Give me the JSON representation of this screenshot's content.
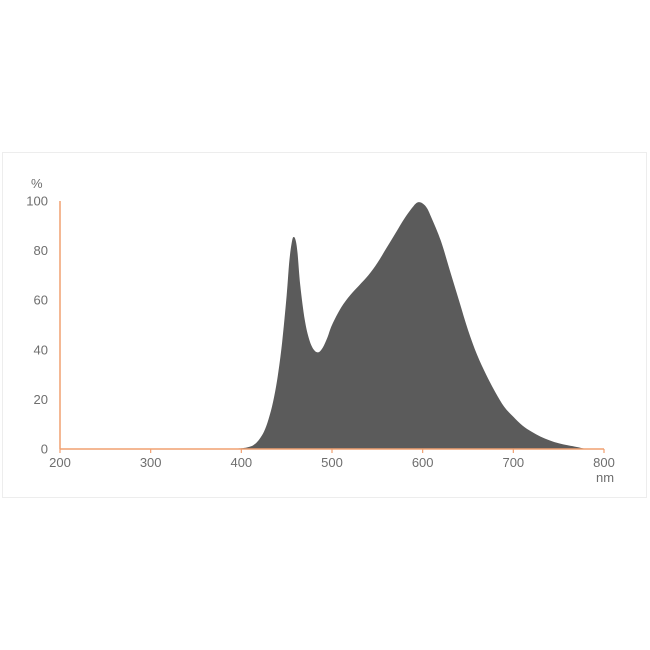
{
  "chart_data": {
    "type": "area",
    "title": "",
    "xlabel": "nm",
    "ylabel": "%",
    "xlim": [
      200,
      800
    ],
    "ylim": [
      0,
      100
    ],
    "x_ticks": [
      200,
      300,
      400,
      500,
      600,
      700,
      800
    ],
    "y_ticks": [
      0,
      20,
      40,
      60,
      80,
      100
    ],
    "grid": false,
    "legend": "none",
    "colors": {
      "fill": "#5b5b5b",
      "axis": "#f0a070",
      "text": "#6e6e6e"
    },
    "series": [
      {
        "x": [
          380,
          400,
          410,
          415,
          420,
          425,
          430,
          435,
          440,
          445,
          450,
          453,
          456,
          458,
          460,
          462,
          465,
          470,
          475,
          480,
          485,
          490,
          495,
          500,
          510,
          520,
          530,
          540,
          550,
          560,
          570,
          580,
          590,
          595,
          600,
          605,
          610,
          620,
          630,
          640,
          650,
          660,
          670,
          680,
          690,
          700,
          710,
          720,
          730,
          740,
          750,
          760,
          770,
          775,
          780
        ],
        "y": [
          0,
          0.3,
          1,
          2,
          4,
          7,
          12,
          19,
          29,
          43,
          62,
          76,
          84,
          85.5,
          84,
          79,
          66,
          52,
          44,
          40,
          39,
          41,
          45,
          50,
          57,
          62,
          66,
          70,
          75,
          81,
          87,
          93,
          98,
          99.5,
          99,
          97,
          93,
          84,
          72,
          60,
          48,
          38,
          30,
          23,
          17,
          13,
          9.5,
          7,
          5,
          3.5,
          2.3,
          1.5,
          0.8,
          0.4,
          0
        ]
      }
    ]
  }
}
